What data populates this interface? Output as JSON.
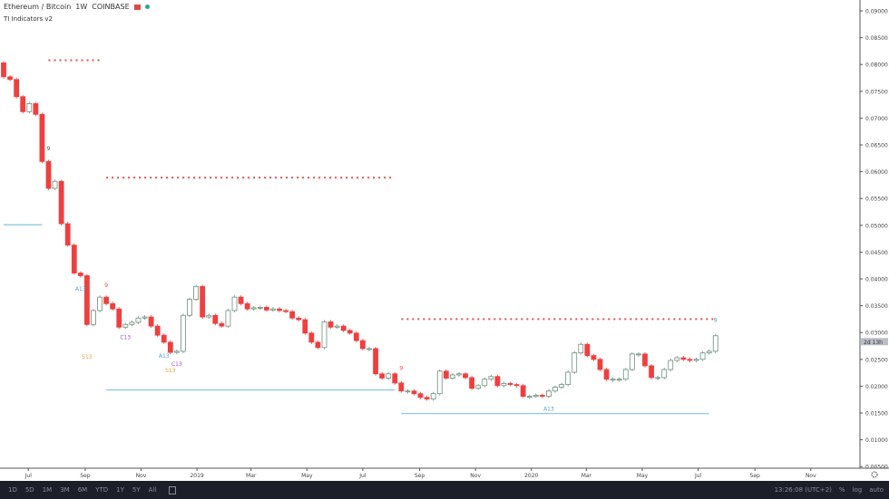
{
  "header": {
    "symbol": "Ethereum / Bitcoin",
    "interval": "1W",
    "exchange": "COINBASE",
    "indicator": "TI Indicators v2",
    "flag_icon": "red-flag-icon",
    "status_icon": "teal-dot-icon"
  },
  "bottom_bar": {
    "ranges": [
      "1D",
      "5D",
      "1M",
      "3M",
      "6M",
      "YTD",
      "1Y",
      "5Y",
      "All"
    ],
    "calendar_icon": "calendar-icon",
    "clock": "13:26:08 (UTC+2)",
    "percent": "%",
    "log": "log",
    "auto": "auto"
  },
  "settings_icon": "gear-icon",
  "chart_data": {
    "type": "candlestick",
    "interval": "1W",
    "x_start": "2018-06-04",
    "first_open": 0.0803,
    "closes": [
      0.0777,
      0.0772,
      0.074,
      0.0712,
      0.0727,
      0.0707,
      0.0619,
      0.0569,
      0.0582,
      0.0503,
      0.0463,
      0.0411,
      0.0406,
      0.0315,
      0.0341,
      0.0366,
      0.0354,
      0.0344,
      0.031,
      0.0315,
      0.0319,
      0.0327,
      0.0329,
      0.0312,
      0.0295,
      0.0282,
      0.0263,
      0.0265,
      0.0332,
      0.0362,
      0.0386,
      0.0329,
      0.0332,
      0.0317,
      0.0312,
      0.0341,
      0.0366,
      0.0354,
      0.0344,
      0.0346,
      0.0347,
      0.0342,
      0.0344,
      0.0341,
      0.0339,
      0.0327,
      0.0324,
      0.0299,
      0.0282,
      0.0272,
      0.032,
      0.031,
      0.0312,
      0.0304,
      0.0299,
      0.0285,
      0.027,
      0.027,
      0.0223,
      0.0215,
      0.0223,
      0.0206,
      0.0191,
      0.0191,
      0.0186,
      0.0179,
      0.0176,
      0.0186,
      0.0228,
      0.0215,
      0.0221,
      0.0223,
      0.0216,
      0.0196,
      0.0201,
      0.0213,
      0.0218,
      0.0201,
      0.0205,
      0.0203,
      0.0201,
      0.0181,
      0.0181,
      0.0183,
      0.0181,
      0.0191,
      0.0198,
      0.0203,
      0.0226,
      0.0262,
      0.0278,
      0.0257,
      0.025,
      0.0231,
      0.0213,
      0.0213,
      0.0213,
      0.0231,
      0.026,
      0.026,
      0.0238,
      0.0216,
      0.0216,
      0.0231,
      0.0248,
      0.0253,
      0.025,
      0.0248,
      0.025,
      0.0262,
      0.0265,
      0.0294
    ],
    "ylim": [
      0.005,
      0.09
    ],
    "y_ticks": [
      "0.09000",
      "0.08500",
      "0.08000",
      "0.07500",
      "0.07000",
      "0.06500",
      "0.06000",
      "0.05500",
      "0.05000",
      "0.04500",
      "0.04000",
      "0.03500",
      "0.03000",
      "0.02500",
      "0.02000",
      "0.01500",
      "0.01000",
      "0.00500"
    ],
    "x_ticks": [
      {
        "label": "Jul",
        "date": "2018-07-01"
      },
      {
        "label": "Sep",
        "date": "2018-09-01"
      },
      {
        "label": "Nov",
        "date": "2018-11-01"
      },
      {
        "label": "2019",
        "date": "2019-01-01"
      },
      {
        "label": "Mar",
        "date": "2019-03-01"
      },
      {
        "label": "May",
        "date": "2019-05-01"
      },
      {
        "label": "Jul",
        "date": "2019-07-01"
      },
      {
        "label": "Sep",
        "date": "2019-09-01"
      },
      {
        "label": "Nov",
        "date": "2019-11-01"
      },
      {
        "label": "2020",
        "date": "2020-01-01"
      },
      {
        "label": "Mar",
        "date": "2020-03-01"
      },
      {
        "label": "May",
        "date": "2020-05-01"
      },
      {
        "label": "Jul",
        "date": "2020-07-01"
      },
      {
        "label": "Sep",
        "date": "2020-09-01"
      },
      {
        "label": "Nov",
        "date": "2020-11-01"
      }
    ],
    "resistance_levels": [
      {
        "price": 0.0808,
        "from": "2018-07-23",
        "to": "2018-09-17"
      },
      {
        "price": 0.0589,
        "from": "2018-09-24",
        "to": "2019-08-05"
      },
      {
        "price": 0.0325,
        "from": "2019-08-12",
        "to": "2020-07-20"
      }
    ],
    "support_levels": [
      {
        "price": 0.0501,
        "from": "2018-06-04",
        "to": "2018-07-16"
      },
      {
        "price": 0.0193,
        "from": "2018-09-24",
        "to": "2019-08-05"
      },
      {
        "price": 0.0149,
        "from": "2019-08-12",
        "to": "2020-07-13"
      }
    ],
    "annotations": [
      {
        "text": "A13",
        "date": "2018-08-27",
        "price": 0.0378,
        "color": "#5b9bd5"
      },
      {
        "text": "S13",
        "date": "2018-09-03",
        "price": 0.0251,
        "color": "#e8a030"
      },
      {
        "text": "C13",
        "date": "2018-10-15",
        "price": 0.0288,
        "color": "#a050d0"
      },
      {
        "text": "A13",
        "date": "2018-11-26",
        "price": 0.0253,
        "color": "#5b9bd5"
      },
      {
        "text": "C13",
        "date": "2018-12-10",
        "price": 0.0238,
        "color": "#a050d0"
      },
      {
        "text": "S13",
        "date": "2018-12-03",
        "price": 0.0226,
        "color": "#e8a030"
      },
      {
        "text": "A13",
        "date": "2020-01-20",
        "price": 0.0154,
        "color": "#5b9bd5"
      },
      {
        "text": "9",
        "date": "2018-07-23",
        "price": 0.064,
        "color": "#555555"
      },
      {
        "text": "9",
        "date": "2018-09-24",
        "price": 0.0385,
        "color": "#e05050"
      },
      {
        "text": "9",
        "date": "2019-08-12",
        "price": 0.023,
        "color": "#e05050"
      },
      {
        "text": "9",
        "date": "2020-07-20",
        "price": 0.032,
        "color": "#26a69a"
      }
    ],
    "last_price_label": "2d 13h",
    "last_price": 0.0294,
    "colors": {
      "up": "#6b8f7a",
      "down": "#ef3f3f",
      "resistance": "#e05050",
      "support": "#8fc9e6"
    }
  }
}
